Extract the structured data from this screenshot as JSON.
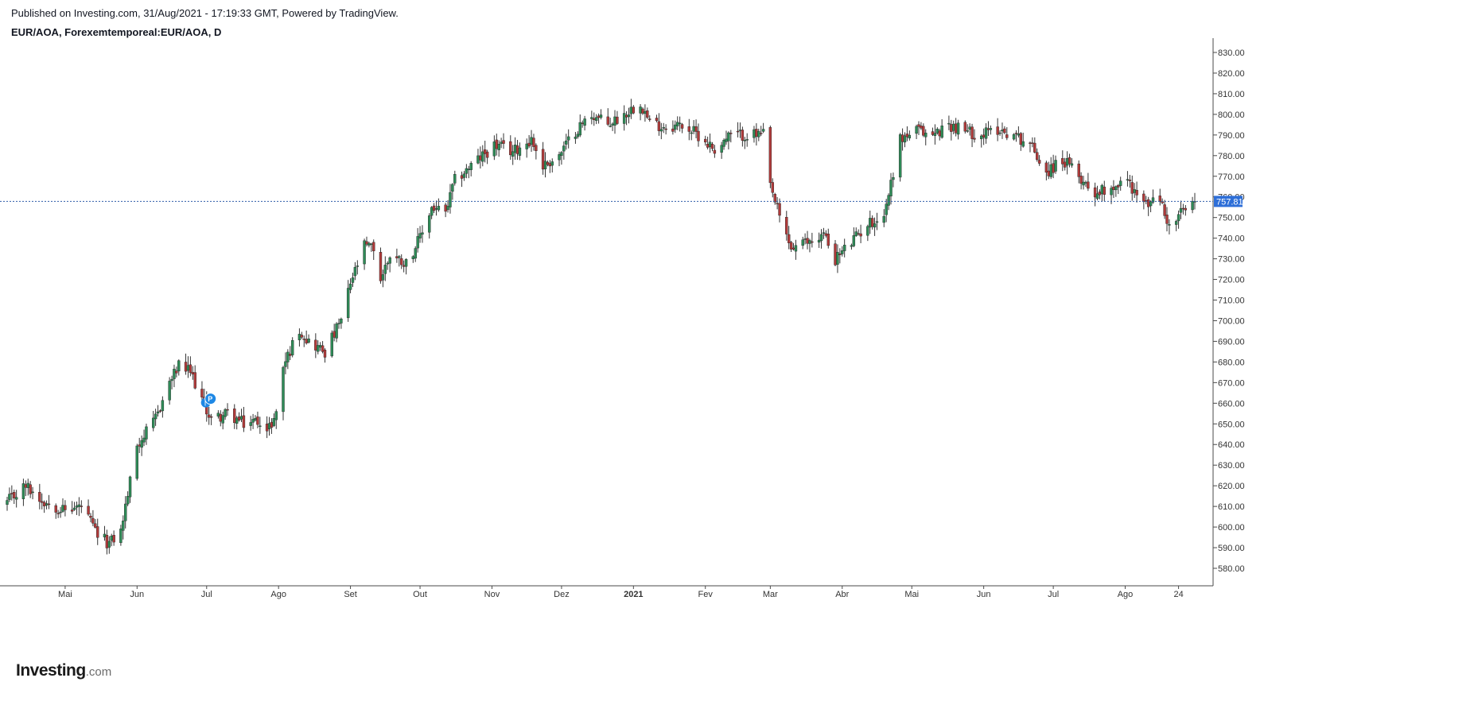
{
  "header": {
    "published": "Published on Investing.com, 31/Aug/2021 - 17:19:33 GMT, Powered by TradingView.",
    "symbol": "EUR/AOA, Forexemtemporeal:EUR/AOA, D"
  },
  "logo": {
    "brand": "Investing",
    "suffix": ".com"
  },
  "colors": {
    "up": "#2e8b57",
    "down": "#b03a3a",
    "wick": "#333333",
    "axis": "#4a4a4a",
    "price_line": "#2e5caa",
    "price_label_bg": "#2e6fd8",
    "marker": "#1e88e5"
  },
  "chart_data": {
    "type": "candlestick",
    "title": "EUR/AOA, Forexemtemporeal:EUR/AOA, D",
    "period": "D",
    "y_ticks": [
      580,
      590,
      600,
      610,
      620,
      630,
      640,
      650,
      660,
      670,
      680,
      690,
      700,
      710,
      720,
      730,
      740,
      750,
      760,
      770,
      780,
      790,
      800,
      810,
      820,
      830
    ],
    "y_tick_labels": [
      "580.00",
      "590.00",
      "600.00",
      "610.00",
      "620.00",
      "630.00",
      "640.00",
      "650.00",
      "660.00",
      "670.00",
      "680.00",
      "690.00",
      "700.00",
      "710.00",
      "720.00",
      "730.00",
      "740.00",
      "750.00",
      "760.00",
      "770.00",
      "780.00",
      "790.00",
      "800.00",
      "810.00",
      "820.00",
      "830.00"
    ],
    "ylim": [
      575,
      836
    ],
    "x_ticks": [
      {
        "label": "Mai",
        "date": "2020-05-01",
        "bold": false
      },
      {
        "label": "Jun",
        "date": "2020-06-01",
        "bold": false
      },
      {
        "label": "Jul",
        "date": "2020-07-01",
        "bold": false
      },
      {
        "label": "Ago",
        "date": "2020-08-01",
        "bold": false
      },
      {
        "label": "Set",
        "date": "2020-09-01",
        "bold": false
      },
      {
        "label": "Out",
        "date": "2020-10-01",
        "bold": false
      },
      {
        "label": "Nov",
        "date": "2020-11-01",
        "bold": false
      },
      {
        "label": "Dez",
        "date": "2020-12-01",
        "bold": false
      },
      {
        "label": "2021",
        "date": "2021-01-01",
        "bold": true
      },
      {
        "label": "Fev",
        "date": "2021-02-01",
        "bold": false
      },
      {
        "label": "Mar",
        "date": "2021-03-01",
        "bold": false
      },
      {
        "label": "Abr",
        "date": "2021-04-01",
        "bold": false
      },
      {
        "label": "Mai",
        "date": "2021-05-01",
        "bold": false
      },
      {
        "label": "Jun",
        "date": "2021-06-01",
        "bold": false
      },
      {
        "label": "Jul",
        "date": "2021-07-01",
        "bold": false
      },
      {
        "label": "Ago",
        "date": "2021-08-01",
        "bold": false
      },
      {
        "label": "24",
        "date": "2021-08-24",
        "bold": false
      }
    ],
    "x_range": [
      "2020-04-06",
      "2021-08-31"
    ],
    "last_price": 757.81,
    "last_price_label": "757.81",
    "events": [
      {
        "date": "2020-07-02",
        "letters": [
          "P",
          "I"
        ]
      }
    ],
    "close_path": [
      [
        "2020-04-06",
        612
      ],
      [
        "2020-04-14",
        620
      ],
      [
        "2020-04-21",
        613
      ],
      [
        "2020-05-01",
        608
      ],
      [
        "2020-05-08",
        610
      ],
      [
        "2020-05-15",
        596
      ],
      [
        "2020-05-20",
        592
      ],
      [
        "2020-05-25",
        598
      ],
      [
        "2020-06-01",
        640
      ],
      [
        "2020-06-08",
        650
      ],
      [
        "2020-06-15",
        670
      ],
      [
        "2020-06-19",
        678
      ],
      [
        "2020-06-24",
        675
      ],
      [
        "2020-06-29",
        662
      ],
      [
        "2020-07-03",
        652
      ],
      [
        "2020-07-10",
        655
      ],
      [
        "2020-07-17",
        650
      ],
      [
        "2020-07-24",
        652
      ],
      [
        "2020-07-27",
        646
      ],
      [
        "2020-07-31",
        655
      ],
      [
        "2020-08-03",
        678
      ],
      [
        "2020-08-10",
        696
      ],
      [
        "2020-08-14",
        690
      ],
      [
        "2020-08-21",
        685
      ],
      [
        "2020-08-28",
        700
      ],
      [
        "2020-09-01",
        718
      ],
      [
        "2020-09-07",
        736
      ],
      [
        "2020-09-11",
        735
      ],
      [
        "2020-09-14",
        720
      ],
      [
        "2020-09-18",
        732
      ],
      [
        "2020-09-25",
        728
      ],
      [
        "2020-10-01",
        740
      ],
      [
        "2020-10-06",
        755
      ],
      [
        "2020-10-12",
        752
      ],
      [
        "2020-10-16",
        768
      ],
      [
        "2020-10-23",
        775
      ],
      [
        "2020-11-02",
        785
      ],
      [
        "2020-11-10",
        782
      ],
      [
        "2020-11-18",
        788
      ],
      [
        "2020-11-23",
        775
      ],
      [
        "2020-11-30",
        780
      ],
      [
        "2020-12-07",
        792
      ],
      [
        "2020-12-14",
        800
      ],
      [
        "2020-12-21",
        795
      ],
      [
        "2020-12-28",
        800
      ],
      [
        "2021-01-04",
        806
      ],
      [
        "2021-01-08",
        796
      ],
      [
        "2021-01-15",
        794
      ],
      [
        "2021-01-22",
        795
      ],
      [
        "2021-01-29",
        790
      ],
      [
        "2021-02-05",
        783
      ],
      [
        "2021-02-12",
        790
      ],
      [
        "2021-02-19",
        790
      ],
      [
        "2021-02-26",
        790
      ],
      [
        "2021-03-01",
        765
      ],
      [
        "2021-03-05",
        750
      ],
      [
        "2021-03-10",
        735
      ],
      [
        "2021-03-17",
        738
      ],
      [
        "2021-03-24",
        742
      ],
      [
        "2021-03-29",
        730
      ],
      [
        "2021-04-05",
        738
      ],
      [
        "2021-04-12",
        747
      ],
      [
        "2021-04-19",
        751
      ],
      [
        "2021-04-26",
        788
      ],
      [
        "2021-05-03",
        792
      ],
      [
        "2021-05-10",
        790
      ],
      [
        "2021-05-17",
        795
      ],
      [
        "2021-05-24",
        792
      ],
      [
        "2021-05-31",
        790
      ],
      [
        "2021-06-07",
        793
      ],
      [
        "2021-06-14",
        790
      ],
      [
        "2021-06-21",
        786
      ],
      [
        "2021-06-28",
        772
      ],
      [
        "2021-07-05",
        778
      ],
      [
        "2021-07-12",
        770
      ],
      [
        "2021-07-19",
        762
      ],
      [
        "2021-07-26",
        765
      ],
      [
        "2021-08-02",
        768
      ],
      [
        "2021-08-09",
        756
      ],
      [
        "2021-08-16",
        759
      ],
      [
        "2021-08-20",
        745
      ],
      [
        "2021-08-25",
        752
      ],
      [
        "2021-08-31",
        757.81
      ]
    ]
  }
}
